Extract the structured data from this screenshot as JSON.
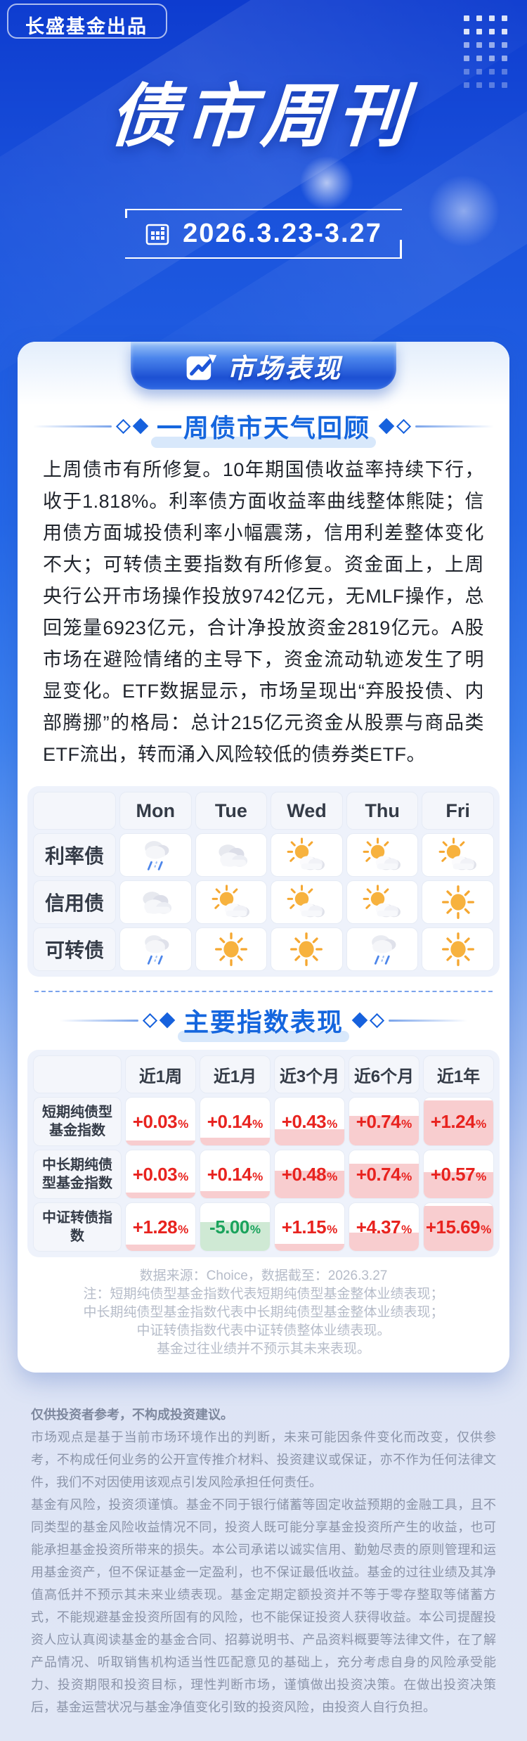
{
  "brand": {
    "label": "长盛基金出品"
  },
  "hero": {
    "title": "债市周刊",
    "date": "2026.3.23-3.27"
  },
  "badge": {
    "label": "市场表现"
  },
  "weather": {
    "heading": "一周债市天气回顾",
    "paragraph": "上周债市有所修复。10年期国债收益率持续下行，收于1.818%。利率债方面收益率曲线整体熊陡；信用债方面城投债利率小幅震荡，信用利差整体变化不大；可转债主要指数有所修复。资金面上，上周央行公开市场操作投放9742亿元，无MLF操作，总回笼量6923亿元，合计净投放资金2819亿元。A股市场在避险情绪的主导下，资金流动轨迹发生了明显变化。ETF数据显示，市场呈现出“弃股投债、内部腾挪”的格局：总计215亿元资金从股票与商品类ETF流出，转而涌入风险较低的债券类ETF。",
    "days": [
      "Mon",
      "Tue",
      "Wed",
      "Thu",
      "Fri"
    ],
    "rows": [
      {
        "label": "利率债",
        "icons": [
          "rain",
          "cloudy",
          "partly",
          "partly",
          "partly"
        ]
      },
      {
        "label": "信用债",
        "icons": [
          "cloudy",
          "partly",
          "partly",
          "partly",
          "sunny"
        ]
      },
      {
        "label": "可转债",
        "icons": [
          "rain",
          "sunny",
          "sunny",
          "rain",
          "sunny"
        ]
      }
    ]
  },
  "perf": {
    "heading": "主要指数表现",
    "cols": [
      "近1周",
      "近1月",
      "近3个月",
      "近6个月",
      "近1年"
    ],
    "unit": "%",
    "rows": [
      {
        "label": "短期纯债型基金指数",
        "cells": [
          {
            "v": "+0.03",
            "fill": 10,
            "tone": "up"
          },
          {
            "v": "+0.14",
            "fill": 16,
            "tone": "up"
          },
          {
            "v": "+0.43",
            "fill": 34,
            "tone": "up"
          },
          {
            "v": "+0.74",
            "fill": 62,
            "tone": "up"
          },
          {
            "v": "+1.24",
            "fill": 94,
            "tone": "up"
          }
        ]
      },
      {
        "label": "中长期纯债型基金指数",
        "cells": [
          {
            "v": "+0.03",
            "fill": 12,
            "tone": "up"
          },
          {
            "v": "+0.14",
            "fill": 15,
            "tone": "up"
          },
          {
            "v": "+0.48",
            "fill": 58,
            "tone": "up"
          },
          {
            "v": "+0.74",
            "fill": 72,
            "tone": "up"
          },
          {
            "v": "+0.57",
            "fill": 55,
            "tone": "up"
          }
        ]
      },
      {
        "label": "中证转债指数",
        "cells": [
          {
            "v": "+1.28",
            "fill": 13,
            "tone": "up"
          },
          {
            "v": "-5.00",
            "fill": 60,
            "tone": "down"
          },
          {
            "v": "+1.15",
            "fill": 14,
            "tone": "up"
          },
          {
            "v": "+4.37",
            "fill": 38,
            "tone": "up"
          },
          {
            "v": "+15.69",
            "fill": 94,
            "tone": "up"
          }
        ]
      }
    ],
    "source": "数据来源：Choice，数据截至：2026.3.27",
    "notes": [
      "注：短期纯债型基金指数代表短期纯债型基金整体业绩表现；",
      "中长期纯债型基金指数代表中长期纯债型基金整体业绩表现；",
      "中证转债指数代表中证转债整体业绩表现。",
      "基金过往业绩并不预示其未来表现。"
    ]
  },
  "disclaimer": {
    "title": "仅供投资者参考，不构成投资建议。",
    "paragraphs": [
      "市场观点是基于当前市场环境作出的判断，未来可能因条件变化而改变，仅供参考，不构成任何业务的公开宣传推介材料、投资建议或保证，亦不作为任何法律文件，我们不对因使用该观点引发风险承担任何责任。",
      "基金有风险，投资须谨慎。基金不同于银行储蓄等固定收益预期的金融工具，且不同类型的基金风险收益情况不同，投资人既可能分享基金投资所产生的收益，也可能承担基金投资所带来的损失。本公司承诺以诚实信用、勤勉尽责的原则管理和运用基金资产，但不保证基金一定盈利，也不保证最低收益。基金的过往业绩及其净值高低并不预示其未来业绩表现。基金定期定额投资并不等于零存整取等储蓄方式，不能规避基金投资所固有的风险，也不能保证投资人获得收益。本公司提醒投资人应认真阅读基金的基金合同、招募说明书、产品资料概要等法律文件，在了解产品情况、听取销售机构适当性匹配意见的基础上，充分考虑自身的风险承受能力、投资期限和投资目标，理性判断市场，谨慎做出投资决策。在做出投资决策后，基金运营状况与基金净值变化引致的投资风险，由投资人自行负担。"
    ]
  },
  "colors": {
    "accent": "#1566de",
    "up": "#e8231f",
    "up_fill": "#f8cdcf",
    "down": "#1aa35c",
    "down_fill": "#cfe9d4"
  }
}
